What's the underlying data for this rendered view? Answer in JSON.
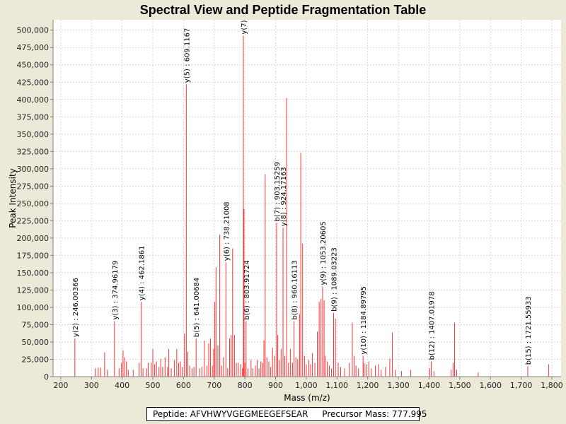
{
  "chart_data": {
    "type": "bar",
    "title": "Spectral View and Peptide Fragmentation Table",
    "xlabel": "Mass (m/z)",
    "ylabel": "Peak Intensity",
    "xlim": [
      175,
      1830
    ],
    "ylim": [
      0,
      515000
    ],
    "x_ticks": [
      200,
      300,
      400,
      500,
      600,
      700,
      800,
      900,
      1000,
      1100,
      1200,
      1300,
      1400,
      1500,
      1600,
      1700,
      1800
    ],
    "x_tick_labels": [
      "200",
      "300",
      "400",
      "500",
      "600",
      "700",
      "800",
      "900",
      "1,000",
      "1,100",
      "1,200",
      "1,300",
      "1,400",
      "1,500",
      "1,600",
      "1,700",
      "1,800"
    ],
    "y_ticks": [
      0,
      25000,
      50000,
      75000,
      100000,
      125000,
      150000,
      175000,
      200000,
      225000,
      250000,
      275000,
      300000,
      325000,
      350000,
      375000,
      400000,
      425000,
      450000,
      475000,
      500000
    ],
    "y_tick_labels": [
      "0",
      "25,000",
      "50,000",
      "75,000",
      "100,000",
      "125,000",
      "150,000",
      "175,000",
      "200,000",
      "225,000",
      "250,000",
      "275,000",
      "300,000",
      "325,000",
      "350,000",
      "375,000",
      "400,000",
      "425,000",
      "450,000",
      "475,000",
      "500,000"
    ],
    "grid": true,
    "peaks": [
      [
        246.0,
        55000
      ],
      [
        312.0,
        12000
      ],
      [
        322.0,
        13000
      ],
      [
        330.0,
        13000
      ],
      [
        343.0,
        35000
      ],
      [
        352.0,
        10000
      ],
      [
        375.0,
        80000
      ],
      [
        390.0,
        12000
      ],
      [
        398.0,
        20000
      ],
      [
        403.0,
        38000
      ],
      [
        408.0,
        28000
      ],
      [
        414.0,
        22000
      ],
      [
        420.0,
        10000
      ],
      [
        436.0,
        10000
      ],
      [
        455.0,
        20000
      ],
      [
        462.2,
        108000
      ],
      [
        468.0,
        12000
      ],
      [
        480.0,
        12000
      ],
      [
        485.0,
        20000
      ],
      [
        495.0,
        20000
      ],
      [
        500.0,
        40000
      ],
      [
        506.0,
        18000
      ],
      [
        512.0,
        22000
      ],
      [
        520.0,
        14000
      ],
      [
        526.0,
        26000
      ],
      [
        532.0,
        14000
      ],
      [
        540.0,
        28000
      ],
      [
        548.0,
        14000
      ],
      [
        552.0,
        40000
      ],
      [
        560.0,
        12000
      ],
      [
        570.0,
        24000
      ],
      [
        578.0,
        40000
      ],
      [
        584.0,
        20000
      ],
      [
        590.0,
        22000
      ],
      [
        596.0,
        14000
      ],
      [
        603.0,
        62000
      ],
      [
        609.1,
        422000
      ],
      [
        614.0,
        36000
      ],
      [
        620.0,
        16000
      ],
      [
        628.0,
        12000
      ],
      [
        634.0,
        14000
      ],
      [
        641.0,
        55000
      ],
      [
        652.0,
        12000
      ],
      [
        660.0,
        14000
      ],
      [
        668.0,
        52000
      ],
      [
        676.0,
        16000
      ],
      [
        682.0,
        48000
      ],
      [
        688.0,
        55000
      ],
      [
        694.0,
        16000
      ],
      [
        698.0,
        40000
      ],
      [
        702.0,
        108000
      ],
      [
        706.0,
        158000
      ],
      [
        712.0,
        45000
      ],
      [
        718.0,
        205000
      ],
      [
        724.0,
        16000
      ],
      [
        730.0,
        28000
      ],
      [
        738.2,
        165000
      ],
      [
        744.0,
        12000
      ],
      [
        750.0,
        55000
      ],
      [
        755.0,
        60000
      ],
      [
        760.0,
        185000
      ],
      [
        766.0,
        60000
      ],
      [
        772.0,
        20000
      ],
      [
        778.0,
        20000
      ],
      [
        786.0,
        18000
      ],
      [
        792.0,
        12000
      ],
      [
        795.0,
        492000
      ],
      [
        797.0,
        242000
      ],
      [
        800.0,
        20000
      ],
      [
        803.9,
        80000
      ],
      [
        810.0,
        12000
      ],
      [
        820.0,
        24000
      ],
      [
        826.0,
        12000
      ],
      [
        834.0,
        16000
      ],
      [
        840.0,
        24000
      ],
      [
        846.0,
        12000
      ],
      [
        852.0,
        22000
      ],
      [
        858.0,
        20000
      ],
      [
        862.0,
        52000
      ],
      [
        866.0,
        292000
      ],
      [
        872.0,
        28000
      ],
      [
        878.0,
        22000
      ],
      [
        884.0,
        14000
      ],
      [
        890.0,
        42000
      ],
      [
        896.0,
        30000
      ],
      [
        903.2,
        222000
      ],
      [
        907.0,
        60000
      ],
      [
        912.0,
        24000
      ],
      [
        918.0,
        40000
      ],
      [
        924.2,
        215000
      ],
      [
        930.0,
        30000
      ],
      [
        936.0,
        402000
      ],
      [
        942.0,
        20000
      ],
      [
        948.0,
        40000
      ],
      [
        955.0,
        20000
      ],
      [
        960.2,
        80000
      ],
      [
        966.0,
        28000
      ],
      [
        972.0,
        25000
      ],
      [
        978.0,
        90000
      ],
      [
        982.0,
        323000
      ],
      [
        988.0,
        192000
      ],
      [
        994.0,
        30000
      ],
      [
        1000.0,
        18000
      ],
      [
        1008.0,
        24000
      ],
      [
        1014.0,
        18000
      ],
      [
        1020.0,
        34000
      ],
      [
        1028.0,
        20000
      ],
      [
        1036.0,
        65000
      ],
      [
        1042.0,
        108000
      ],
      [
        1048.0,
        112000
      ],
      [
        1053.2,
        130000
      ],
      [
        1058.0,
        110000
      ],
      [
        1062.0,
        30000
      ],
      [
        1068.0,
        22000
      ],
      [
        1075.0,
        16000
      ],
      [
        1082.0,
        12000
      ],
      [
        1089.0,
        92000
      ],
      [
        1095.0,
        84000
      ],
      [
        1104.0,
        20000
      ],
      [
        1112.0,
        14000
      ],
      [
        1125.0,
        12000
      ],
      [
        1140.0,
        20000
      ],
      [
        1150.0,
        78000
      ],
      [
        1156.0,
        30000
      ],
      [
        1162.0,
        16000
      ],
      [
        1170.0,
        12000
      ],
      [
        1185.0,
        30000
      ],
      [
        1188.0,
        20000
      ],
      [
        1195.0,
        18000
      ],
      [
        1204.0,
        22000
      ],
      [
        1212.0,
        12000
      ],
      [
        1225.0,
        16000
      ],
      [
        1236.0,
        18000
      ],
      [
        1244.0,
        10000
      ],
      [
        1258.0,
        14000
      ],
      [
        1272.0,
        26000
      ],
      [
        1280.0,
        64000
      ],
      [
        1290.0,
        10000
      ],
      [
        1310.0,
        8000
      ],
      [
        1340.0,
        10000
      ],
      [
        1402.0,
        12000
      ],
      [
        1407.0,
        22000
      ],
      [
        1416.0,
        8000
      ],
      [
        1472.0,
        10000
      ],
      [
        1478.0,
        20000
      ],
      [
        1483.0,
        78000
      ],
      [
        1490.0,
        10000
      ],
      [
        1560.0,
        6000
      ],
      [
        1721.6,
        15000
      ],
      [
        1790.0,
        18000
      ]
    ],
    "annotations": [
      {
        "x": 246.0,
        "y": 55000,
        "label": "y(2) : 246.00366"
      },
      {
        "x": 375.0,
        "y": 80000,
        "label": "y(3) : 374.96179"
      },
      {
        "x": 462.2,
        "y": 108000,
        "label": "y(4) : 462.1861"
      },
      {
        "x": 609.1,
        "y": 422000,
        "label": "y(5) : 609.1167"
      },
      {
        "x": 641.0,
        "y": 55000,
        "label": "b(5) : 641.00684"
      },
      {
        "x": 738.2,
        "y": 165000,
        "label": "y(6) : 738.21008"
      },
      {
        "x": 795.0,
        "y": 492000,
        "label": "y(7)"
      },
      {
        "x": 803.9,
        "y": 80000,
        "label": "b(6) : 803.91724"
      },
      {
        "x": 903.2,
        "y": 222000,
        "label": "b(7) : 903.15259"
      },
      {
        "x": 924.2,
        "y": 215000,
        "label": "y(8) : 924.17163"
      },
      {
        "x": 960.2,
        "y": 80000,
        "label": "b(8) : 960.16113"
      },
      {
        "x": 1053.2,
        "y": 130000,
        "label": "y(9) : 1053.20605"
      },
      {
        "x": 1089.0,
        "y": 92000,
        "label": "b(9) : 1089.03223"
      },
      {
        "x": 1185.0,
        "y": 30000,
        "label": "y(10) : 1184.89795"
      },
      {
        "x": 1407.0,
        "y": 22000,
        "label": "b(12) : 1407.01978"
      },
      {
        "x": 1721.6,
        "y": 15000,
        "label": "b(15) : 1721.55933"
      }
    ],
    "colors": {
      "peak": "#ff3333",
      "grid": "#d0d0d0",
      "axis": "#808080"
    }
  },
  "info": {
    "peptide": "Peptide: AFVHWYVGEGMEEGEFSEAR",
    "precursor": "Precursor Mass: 777.995"
  }
}
